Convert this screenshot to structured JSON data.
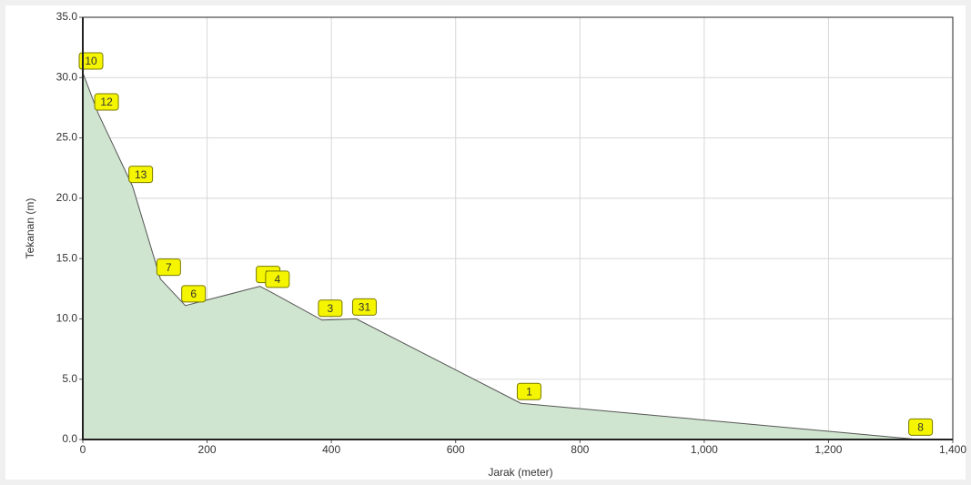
{
  "chart_data": {
    "type": "area",
    "x_label": "Jarak (meter)",
    "y_label": "Tekanan (m)",
    "x": [
      0,
      25,
      80,
      125,
      165,
      285,
      300,
      385,
      440,
      705,
      1335
    ],
    "series": [
      {
        "values": [
          30.4,
          27.0,
          21.0,
          13.3,
          11.1,
          12.7,
          12.3,
          9.9,
          10.0,
          3.0,
          0.05
        ],
        "labels": [
          "10",
          "12",
          "13",
          "7",
          "6",
          "5",
          "4",
          "3",
          "31",
          "1",
          "8"
        ],
        "color": "#cfe5cf",
        "line_color": "#555555"
      }
    ],
    "xlim": [
      0,
      1400
    ],
    "xticks": [
      0,
      200,
      400,
      600,
      800,
      {
        "value": 1000,
        "label": "1,000"
      },
      {
        "value": 1200,
        "label": "1,200"
      },
      {
        "value": 1400,
        "label": "1,400"
      }
    ],
    "ylim": [
      0,
      35
    ],
    "yticks": [
      {
        "value": 0,
        "label": "0.0"
      },
      {
        "value": 5,
        "label": "5.0"
      },
      {
        "value": 10,
        "label": "10.0"
      },
      {
        "value": 15,
        "label": "15.0"
      },
      {
        "value": 20,
        "label": "20.0"
      },
      {
        "value": 25,
        "label": "25.0"
      },
      {
        "value": 30,
        "label": "30.0"
      },
      {
        "value": 35,
        "label": "35.0"
      }
    ],
    "grid": true
  }
}
